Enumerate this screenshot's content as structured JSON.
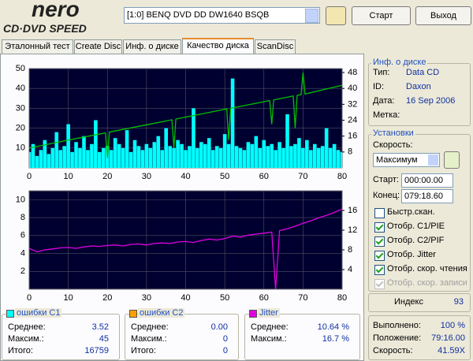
{
  "logo": {
    "brand": "nero",
    "product": "CD·DVD SPEED"
  },
  "toolbar": {
    "drive": "[1:0]  BENQ DVD DD DW1640 BSQB",
    "start_button": "Старт",
    "exit_button": "Выход"
  },
  "tabs": [
    "Эталонный тест",
    "Create Disc",
    "Инф. о диске",
    "Качество диска",
    "ScanDisc"
  ],
  "active_tab": 3,
  "chart_data": [
    {
      "type": "bar",
      "xlim": [
        0,
        80
      ],
      "xticks": [
        0,
        10,
        20,
        30,
        40,
        50,
        60,
        70,
        80
      ],
      "ylim": [
        0,
        50
      ],
      "yticks": [
        10,
        20,
        30,
        40,
        50
      ],
      "y2lim": [
        0,
        50
      ],
      "y2ticks": [
        8,
        16,
        24,
        32,
        40,
        48
      ],
      "grid": true,
      "background": "#000030",
      "series": [
        {
          "color": "#00ffff",
          "x": [
            0,
            1,
            2,
            3,
            4,
            5,
            6,
            7,
            8,
            9,
            10,
            11,
            12,
            13,
            14,
            15,
            16,
            17,
            18,
            19,
            20,
            21,
            22,
            23,
            24,
            25,
            26,
            27,
            28,
            29,
            30,
            31,
            32,
            33,
            34,
            35,
            36,
            37,
            38,
            39,
            40,
            41,
            42,
            43,
            44,
            45,
            46,
            47,
            48,
            49,
            50,
            51,
            52,
            53,
            54,
            55,
            56,
            57,
            58,
            59,
            60,
            61,
            62,
            63,
            64,
            65,
            66,
            67,
            68,
            69,
            70,
            71,
            72,
            73,
            74,
            75,
            76,
            77,
            78,
            79,
            80
          ],
          "values": [
            8,
            12,
            6,
            9,
            14,
            7,
            10,
            18,
            9,
            11,
            22,
            8,
            13,
            10,
            16,
            9,
            12,
            24,
            8,
            10,
            11,
            9,
            15,
            12,
            10,
            19,
            8,
            14,
            11,
            9,
            12,
            10,
            13,
            16,
            9,
            20,
            11,
            10,
            14,
            12,
            9,
            11,
            30,
            10,
            13,
            12,
            15,
            9,
            11,
            10,
            17,
            12,
            45,
            11,
            10,
            9,
            13,
            12,
            16,
            10,
            14,
            11,
            12,
            9,
            13,
            10,
            27,
            11,
            12,
            15,
            10,
            14,
            9,
            12,
            10,
            11,
            20,
            10,
            12,
            9,
            8
          ]
        },
        {
          "type": "line",
          "axis": "y2",
          "color": "#00c000",
          "x": [
            0,
            10,
            19.5,
            20,
            20.5,
            30,
            36.5,
            37,
            37.5,
            50.5,
            51,
            51.5,
            61.5,
            62,
            62.5,
            67.5,
            68,
            68.5,
            69.5,
            70,
            70.5,
            80
          ],
          "values": [
            10,
            14,
            17.6,
            5,
            18,
            21.7,
            24.2,
            10,
            24.6,
            29.7,
            14,
            30,
            33.9,
            22,
            34.2,
            36.2,
            20,
            36.5,
            36.9,
            48,
            37.2,
            41.6
          ]
        }
      ]
    },
    {
      "type": "line",
      "xlim": [
        0,
        80
      ],
      "xticks": [
        0,
        10,
        20,
        30,
        40,
        50,
        60,
        70,
        80
      ],
      "ylim": [
        0,
        11
      ],
      "yticks": [
        2,
        4,
        6,
        8,
        10
      ],
      "y2lim": [
        0,
        20
      ],
      "y2ticks": [
        4,
        8,
        12,
        16
      ],
      "grid": true,
      "background": "#000030",
      "series": [
        {
          "axis": "y2",
          "color": "#e000e0",
          "x": [
            0,
            2,
            4,
            6,
            8,
            10,
            12,
            14,
            16,
            18,
            20,
            22,
            24,
            26,
            28,
            30,
            32,
            34,
            36,
            38,
            40,
            42,
            44,
            46,
            48,
            50,
            52,
            54,
            56,
            58,
            60,
            62,
            63,
            64,
            66,
            68,
            70,
            72,
            74,
            76,
            78,
            80
          ],
          "values": [
            8.3,
            7.6,
            8.0,
            8.2,
            8.4,
            8.5,
            8.3,
            8.6,
            8.8,
            8.7,
            8.9,
            9.0,
            8.8,
            9.1,
            9.2,
            9.0,
            9.3,
            9.4,
            9.3,
            9.6,
            9.7,
            9.5,
            9.9,
            10.2,
            10.0,
            10.3,
            10.8,
            10.6,
            11.0,
            11.2,
            11.4,
            11.6,
            0,
            11.9,
            12.3,
            12.8,
            13.4,
            13.9,
            14.5,
            15.0,
            15.6,
            16.3
          ]
        }
      ]
    }
  ],
  "stats": [
    {
      "title": "ошибки C1",
      "color": "#00ffff",
      "rows": [
        [
          "Среднее:",
          3.52
        ],
        [
          "Максим.:",
          45
        ],
        [
          "Итого:",
          16759
        ]
      ]
    },
    {
      "title": "ошибки C2",
      "color": "#ffa000",
      "rows": [
        [
          "Среднее:",
          "0.00"
        ],
        [
          "Максим.:",
          0
        ],
        [
          "Итого:",
          0
        ]
      ]
    },
    {
      "title": "Jitter",
      "color": "#e000e0",
      "rows": [
        [
          "Среднее:",
          "10.64 %"
        ],
        [
          "Максим.:",
          "16.7 %"
        ]
      ]
    }
  ],
  "disc_info": {
    "title": "Инф. о диске",
    "rows": [
      [
        "Тип:",
        "Data CD"
      ],
      [
        "ID:",
        "Daxon"
      ],
      [
        "Дата:",
        "16 Sep 2006"
      ],
      [
        "Метка:"
      ]
    ]
  },
  "settings": {
    "title": "Установки",
    "speed_label": "Скорость:",
    "speed_value": "Максимум",
    "start_label": "Старт:",
    "start_value": "000:00.00",
    "end_label": "Конец:",
    "end_value": "079:18.60",
    "checkboxes": [
      {
        "label": "Быстр.скан.",
        "checked": false
      },
      {
        "label": "Отобр. C1/PIE",
        "checked": true
      },
      {
        "label": "Отобр. C2/PIF",
        "checked": true
      },
      {
        "label": "Отобр. Jitter",
        "checked": true
      },
      {
        "label": "Отобр. скор. чтения",
        "checked": true
      },
      {
        "label": "Отобр. скор. записи",
        "checked": true,
        "disabled": true
      }
    ]
  },
  "index": {
    "label": "Индекс",
    "value": 93
  },
  "progress": [
    [
      "Выполнено:",
      "100 %"
    ],
    [
      "Положение:",
      "79:16.00"
    ],
    [
      "Скорость:",
      "41.59X"
    ]
  ]
}
